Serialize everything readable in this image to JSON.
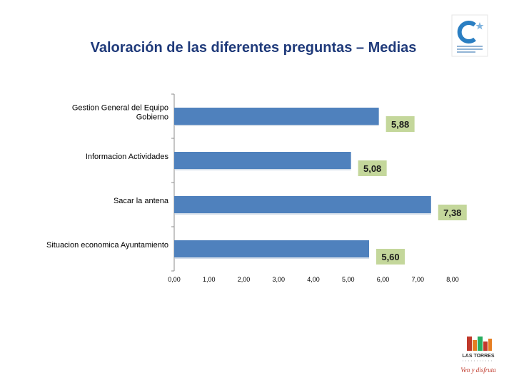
{
  "slide": {
    "title": "Valoración de las diferentes preguntas – Medias",
    "top_logo": {
      "icon": "c-star-logo",
      "caption_lines": [
        "",
        "",
        ""
      ]
    },
    "bottom_logo": {
      "icon": "las-torres-logo",
      "name": "LAS TORRES",
      "slogan": "Ven y disfruta"
    }
  },
  "chart_data": {
    "type": "bar",
    "orientation": "horizontal",
    "title": "",
    "xlabel": "",
    "ylabel": "",
    "categories": [
      "Gestion General del  Equipo Gobierno",
      "Informacion Actividades",
      "Sacar la antena",
      "Situacion economica Ayuntamiento"
    ],
    "category_lines": [
      [
        "Gestion General del  Equipo",
        "Gobierno"
      ],
      [
        "Informacion Actividades"
      ],
      [
        "Sacar la antena"
      ],
      [
        "Situacion economica Ayuntamiento"
      ]
    ],
    "values": [
      5.88,
      5.08,
      7.38,
      5.6
    ],
    "value_labels": [
      "5,88",
      "5,08",
      "7,38",
      "5,60"
    ],
    "xlim": [
      0,
      8
    ],
    "x_ticks": [
      0,
      1,
      2,
      3,
      4,
      5,
      6,
      7,
      8
    ],
    "x_tick_labels": [
      "0,00",
      "1,00",
      "2,00",
      "3,00",
      "4,00",
      "5,00",
      "6,00",
      "7,00",
      "8,00"
    ],
    "grid": false,
    "legend": "none",
    "bar_color": "#4f81bd",
    "label_box_color": "#c4d79b"
  }
}
